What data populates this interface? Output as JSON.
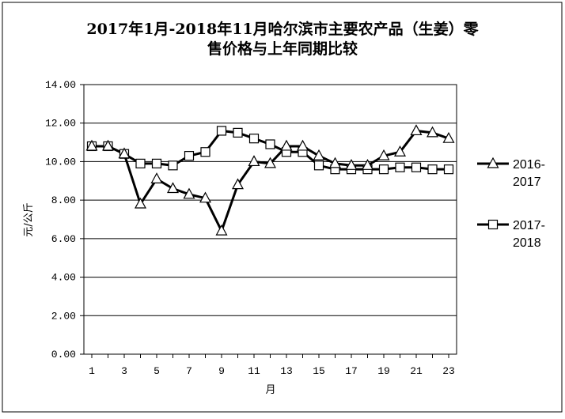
{
  "chart_data": {
    "type": "line",
    "title_lines": [
      "2017年1月-2018年11月哈尔滨市主要农产品（生姜）零",
      "售价格与上年同期比较"
    ],
    "xlabel": "月",
    "ylabel": "元/公斤",
    "x": [
      1,
      2,
      3,
      4,
      5,
      6,
      7,
      8,
      9,
      10,
      11,
      12,
      13,
      14,
      15,
      16,
      17,
      18,
      19,
      20,
      21,
      22,
      23
    ],
    "x_tick_labels": [
      "1",
      "3",
      "5",
      "7",
      "9",
      "11",
      "13",
      "15",
      "17",
      "19",
      "21",
      "23"
    ],
    "y_tick_labels": [
      "0.00",
      "2.00",
      "4.00",
      "6.00",
      "8.00",
      "10.00",
      "12.00",
      "14.00"
    ],
    "xlim": [
      1,
      23
    ],
    "ylim": [
      0,
      14
    ],
    "grid": "horizontal",
    "legend_position": "right",
    "series": [
      {
        "name_lines": [
          "2016-",
          "2017"
        ],
        "marker": "triangle",
        "values": [
          10.8,
          10.8,
          10.4,
          7.8,
          9.1,
          8.6,
          8.3,
          8.1,
          6.4,
          8.8,
          10.0,
          9.9,
          10.8,
          10.8,
          10.3,
          9.9,
          9.8,
          9.8,
          10.3,
          10.5,
          11.6,
          11.5,
          11.2
        ]
      },
      {
        "name_lines": [
          "2017-",
          "2018"
        ],
        "marker": "square",
        "values": [
          10.8,
          10.8,
          10.4,
          9.9,
          9.9,
          9.8,
          10.3,
          10.5,
          11.6,
          11.5,
          11.2,
          10.9,
          10.5,
          10.5,
          9.8,
          9.6,
          9.6,
          9.6,
          9.6,
          9.7,
          9.7,
          9.6,
          9.6
        ]
      }
    ]
  }
}
